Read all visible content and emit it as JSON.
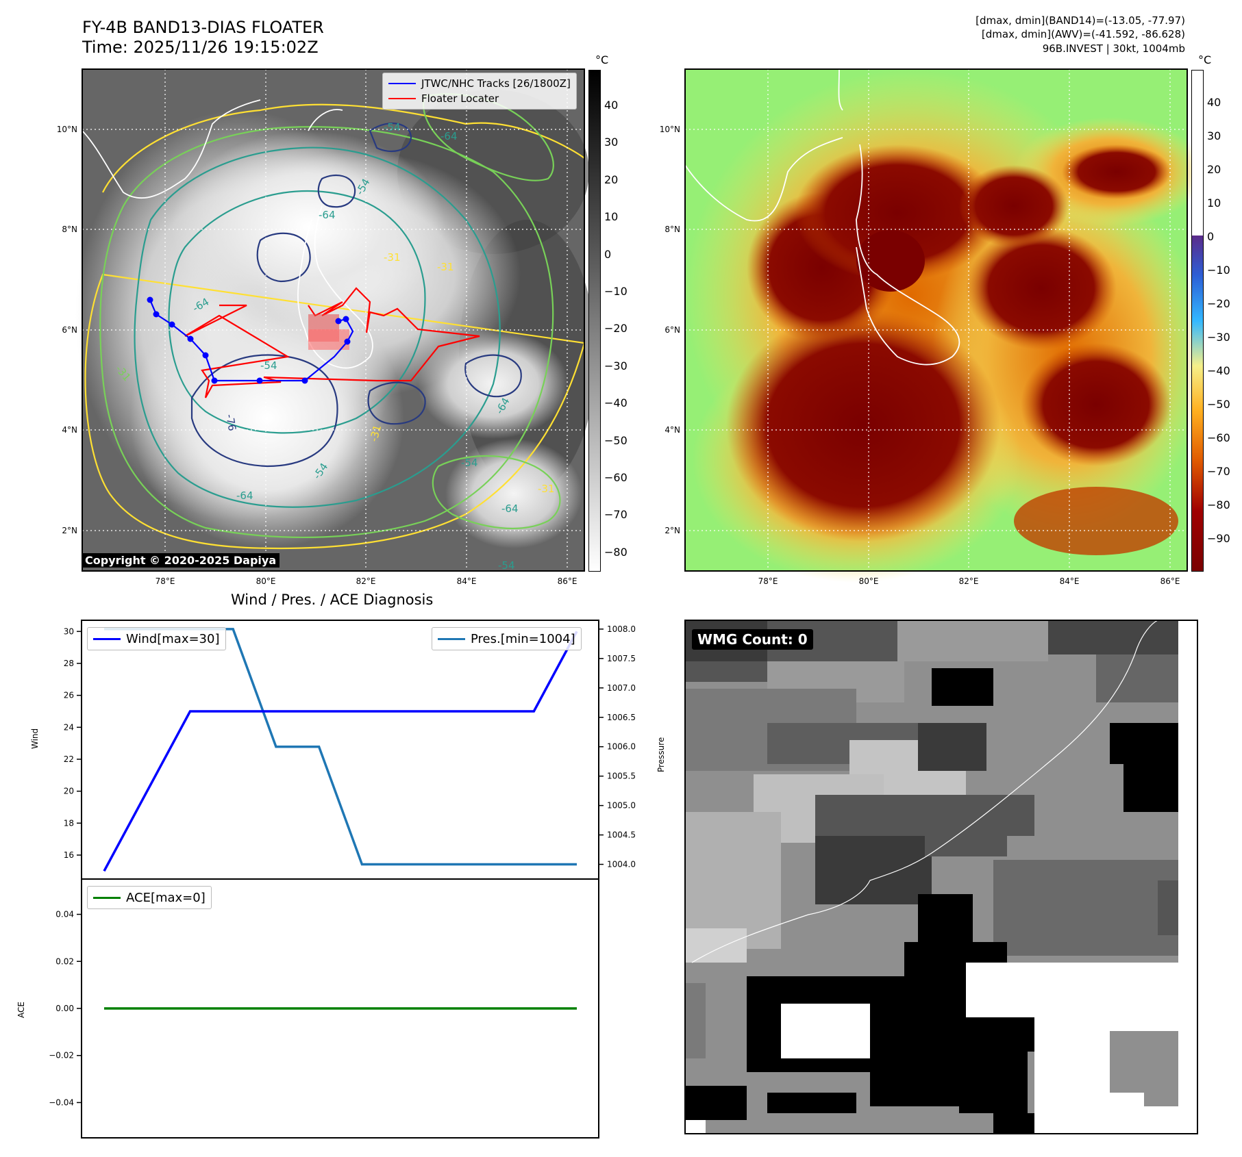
{
  "header": {
    "title_line1": "FY-4B BAND13-DIAS FLOATER",
    "title_line2": "Time: 2025/11/26 19:15:02Z",
    "info_line1": "[dmax, dmin](BAND14)=(-13.05, -77.97)",
    "info_line2": "[dmax, dmin](AWV)=(-41.592, -86.628)",
    "info_line3": "96B.INVEST | 30kt, 1004mb"
  },
  "map_axes": {
    "lon_ticks": [
      "78°E",
      "80°E",
      "82°E",
      "84°E",
      "86°E"
    ],
    "lat_ticks": [
      "10°N",
      "8°N",
      "6°N",
      "4°N",
      "2°N"
    ]
  },
  "ir_panel": {
    "legend": [
      "JTWC/NHC Tracks [26/1800Z]",
      "Floater Locater"
    ],
    "contour_labels": [
      "-54",
      "-64",
      "-54",
      "-64",
      "-31",
      "-31",
      "-64",
      "-54",
      "-76",
      "-64",
      "-54",
      "-31",
      "-31",
      "-64",
      "-54",
      "-31",
      "-64",
      "-54"
    ],
    "copyright": "Copyright © 2020-2025 Dapiya",
    "colorbar_unit": "°C",
    "colorbar_ticks": [
      "40",
      "30",
      "20",
      "10",
      "0",
      "−10",
      "−20",
      "−30",
      "−40",
      "−50",
      "−60",
      "−70",
      "−80"
    ]
  },
  "wv_panel": {
    "colorbar_unit": "°C",
    "colorbar_ticks": [
      "40",
      "30",
      "20",
      "10",
      "0",
      "−10",
      "−20",
      "−30",
      "−40",
      "−50",
      "−60",
      "−70",
      "−80",
      "−90"
    ]
  },
  "diagnosis": {
    "title": "Wind / Pres. / ACE Diagnosis",
    "wind_ylabel": "Wind",
    "pressure_ylabel": "Pressure",
    "ace_ylabel": "ACE",
    "wind_legend": "Wind[max=30]",
    "pres_legend": "Pres.[min=1004]",
    "ace_legend": "ACE[max=0]",
    "wind_ticks": [
      "30",
      "28",
      "26",
      "24",
      "22",
      "20",
      "18",
      "16"
    ],
    "pres_ticks": [
      "1008.0",
      "1007.5",
      "1007.0",
      "1006.5",
      "1006.0",
      "1005.5",
      "1005.0",
      "1004.5",
      "1004.0"
    ],
    "ace_ticks": [
      "0.04",
      "0.02",
      "0.00",
      "−0.02",
      "−0.04"
    ]
  },
  "wmg_panel": {
    "label": "WMG Count: 0"
  },
  "colors": {
    "wind": "#0000ff",
    "pressure": "#1f77b4",
    "ace": "#008000",
    "track": "#0000ff",
    "floater": "#ff0000"
  },
  "chart_data": {
    "type": "line",
    "x": [
      0,
      1,
      2,
      3,
      4,
      5,
      6,
      7,
      8,
      9,
      10,
      11
    ],
    "series": [
      {
        "name": "Wind[max=30]",
        "values": [
          15,
          20,
          25,
          25,
          25,
          25,
          25,
          25,
          25,
          25,
          25,
          30
        ]
      },
      {
        "name": "Pres.[min=1004]",
        "values": [
          1008,
          1008,
          1008,
          1008,
          1006,
          1006,
          1004,
          1004,
          1004,
          1004,
          1004,
          1004
        ]
      },
      {
        "name": "ACE[max=0]",
        "values": [
          0,
          0,
          0,
          0,
          0,
          0,
          0,
          0,
          0,
          0,
          0,
          0
        ]
      }
    ],
    "wind_ylim": [
      14.5,
      30.7
    ],
    "pres_ylim": [
      1003.75,
      1008.15
    ],
    "ace_ylim": [
      -0.055,
      0.055
    ],
    "grid": false
  }
}
